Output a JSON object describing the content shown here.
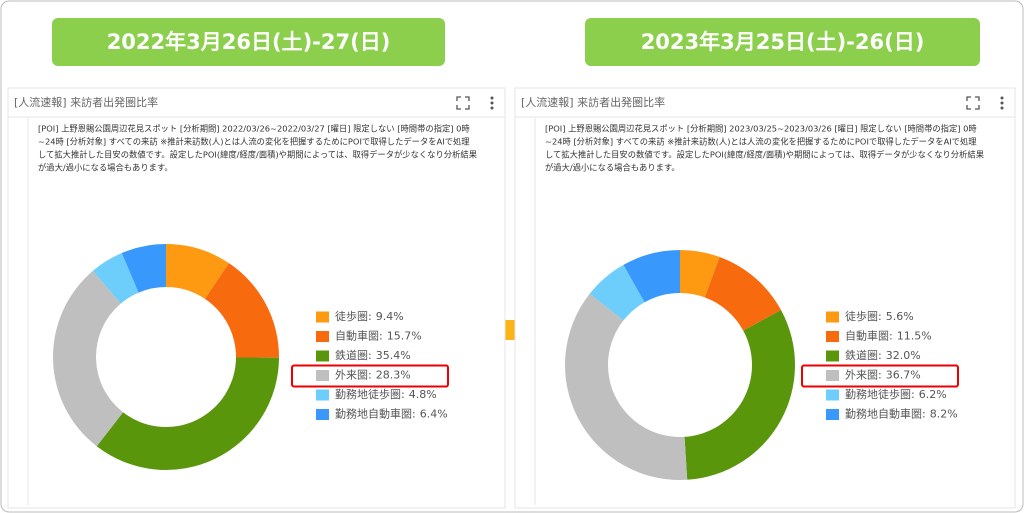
{
  "chart_data": [
    {
      "type": "donut",
      "label": "2022年3月26日(土)-27(日)",
      "title": "[人流速報] 来訪者出発圏比率",
      "description": [
        "[POI] 上野恩賜公園周辺花見スポット [分析期間] 2022/03/26~2022/03/27 [曜日] 限定しない [時間帯の指定] 0時",
        "~24時 [分析対象] すべての来訪 ※推計来訪数(人)とは人流の変化を把握するためにPOIで取得したデータをAIで処理",
        "して拡大推計した目安の数値です。設定したPOI(緯度/経度/面積)や期間によっては、取得データが少なくなり分析結果",
        "が過大/過小になる場合もあります。"
      ],
      "categories": [
        "徒歩圏:",
        "自動車圏:",
        "鉄道圏:",
        "外来圏:",
        "勤務地徒歩圏:",
        "勤務地自動車圏:"
      ],
      "values": [
        9.4,
        15.7,
        35.4,
        28.3,
        4.8,
        6.4
      ],
      "value_labels": [
        "9.4%",
        "15.7%",
        "35.4%",
        "28.3%",
        "4.8%",
        "6.4%"
      ],
      "colors": [
        "#fd9a12",
        "#f86a0e",
        "#5a960c",
        "#bfbfbf",
        "#6dcdfb",
        "#3898fb"
      ]
    },
    {
      "type": "donut",
      "label": "2023年3月25日(土)-26(日)",
      "title": "[人流速報] 来訪者出発圏比率",
      "description": [
        "[POI] 上野恩賜公園周辺花見スポット [分析期間] 2023/03/25~2023/03/26 [曜日] 限定しない [時間帯の指定] 0時",
        "~24時 [分析対象] すべての来訪 ※推計来訪数(人)とは人流の変化を把握するためにPOIで取得したデータをAIで処理",
        "して拡大推計した目安の数値です。設定したPOI(緯度/経度/面積)や期間によっては、取得データが少なくなり分析結果",
        "が過大/過小になる場合もあります。"
      ],
      "categories": [
        "徒歩圏:",
        "自動車圏:",
        "鉄道圏:",
        "外来圏:",
        "勤務地徒歩圏:",
        "勤務地自動車圏:"
      ],
      "values": [
        5.6,
        11.5,
        32.0,
        36.7,
        6.2,
        8.2
      ],
      "value_labels": [
        "5.6%",
        "11.5%",
        "32.0%",
        "36.7%",
        "6.2%",
        "8.2%"
      ],
      "colors": [
        "#fd9a12",
        "#f86a0e",
        "#5a960c",
        "#bfbfbf",
        "#6dcdfb",
        "#3898fb"
      ]
    }
  ]
}
